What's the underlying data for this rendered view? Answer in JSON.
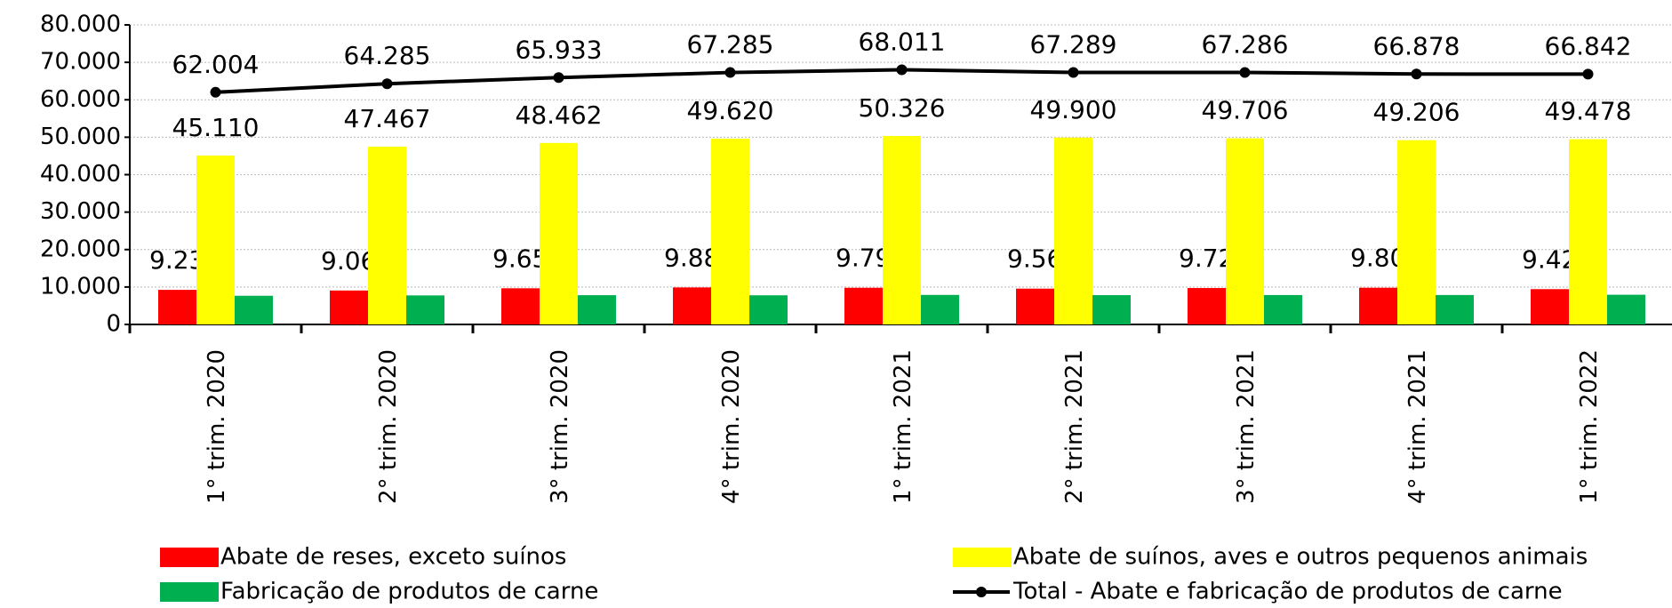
{
  "chart_data": {
    "type": "bar",
    "categories": [
      "1° trim. 2020",
      "2° trim. 2020",
      "3° trim. 2020",
      "4° trim. 2020",
      "1° trim. 2021",
      "2° trim. 2021",
      "3° trim. 2021",
      "4° trim. 2021",
      "1° trim. 2022"
    ],
    "series": [
      {
        "name": "Abate de reses, exceto suínos",
        "color": "#ff0000",
        "values": [
          9238,
          9062,
          9657,
          9882,
          9797,
          9562,
          9727,
          9809,
          9429
        ],
        "value_labels": [
          "9.238",
          "9.062",
          "9.657",
          "9.882",
          "9.797",
          "9.562",
          "9.727",
          "9.809",
          "9.429"
        ]
      },
      {
        "name": "Abate de suínos, aves e outros pequenos animais",
        "color": "#ffff00",
        "values": [
          45110,
          47467,
          48462,
          49620,
          50326,
          49900,
          49706,
          49206,
          49478
        ],
        "value_labels": [
          "45.110",
          "47.467",
          "48.462",
          "49.620",
          "50.326",
          "49.900",
          "49.706",
          "49.206",
          "49.478"
        ]
      },
      {
        "name": "Fabricação de produtos de carne",
        "color": "#00b050",
        "values": [
          7656,
          7756,
          7814,
          7783,
          7888,
          7827,
          7853,
          7863,
          7935
        ]
      },
      {
        "name": "Total - Abate e fabricação de produtos de carne",
        "type": "line",
        "color": "#000000",
        "values": [
          62004,
          64285,
          65933,
          67285,
          68011,
          67289,
          67286,
          66878,
          66842
        ],
        "value_labels": [
          "62.004",
          "64.285",
          "65.933",
          "67.285",
          "68.011",
          "67.289",
          "67.286",
          "66.878",
          "66.842"
        ]
      }
    ],
    "ylim": [
      0,
      80000
    ],
    "yticks": [
      0,
      {
        "value": 10000,
        "label": "10.000"
      },
      {
        "value": 20000,
        "label": "20.000"
      },
      {
        "value": 30000,
        "label": "30.000"
      },
      {
        "value": 40000,
        "label": "40.000"
      },
      {
        "value": 50000,
        "label": "50.000"
      },
      {
        "value": 60000,
        "label": "60.000"
      },
      {
        "value": 70000,
        "label": "70.000"
      },
      {
        "value": 80000,
        "label": "80.000"
      }
    ],
    "grid": true,
    "legend": "bottom"
  }
}
